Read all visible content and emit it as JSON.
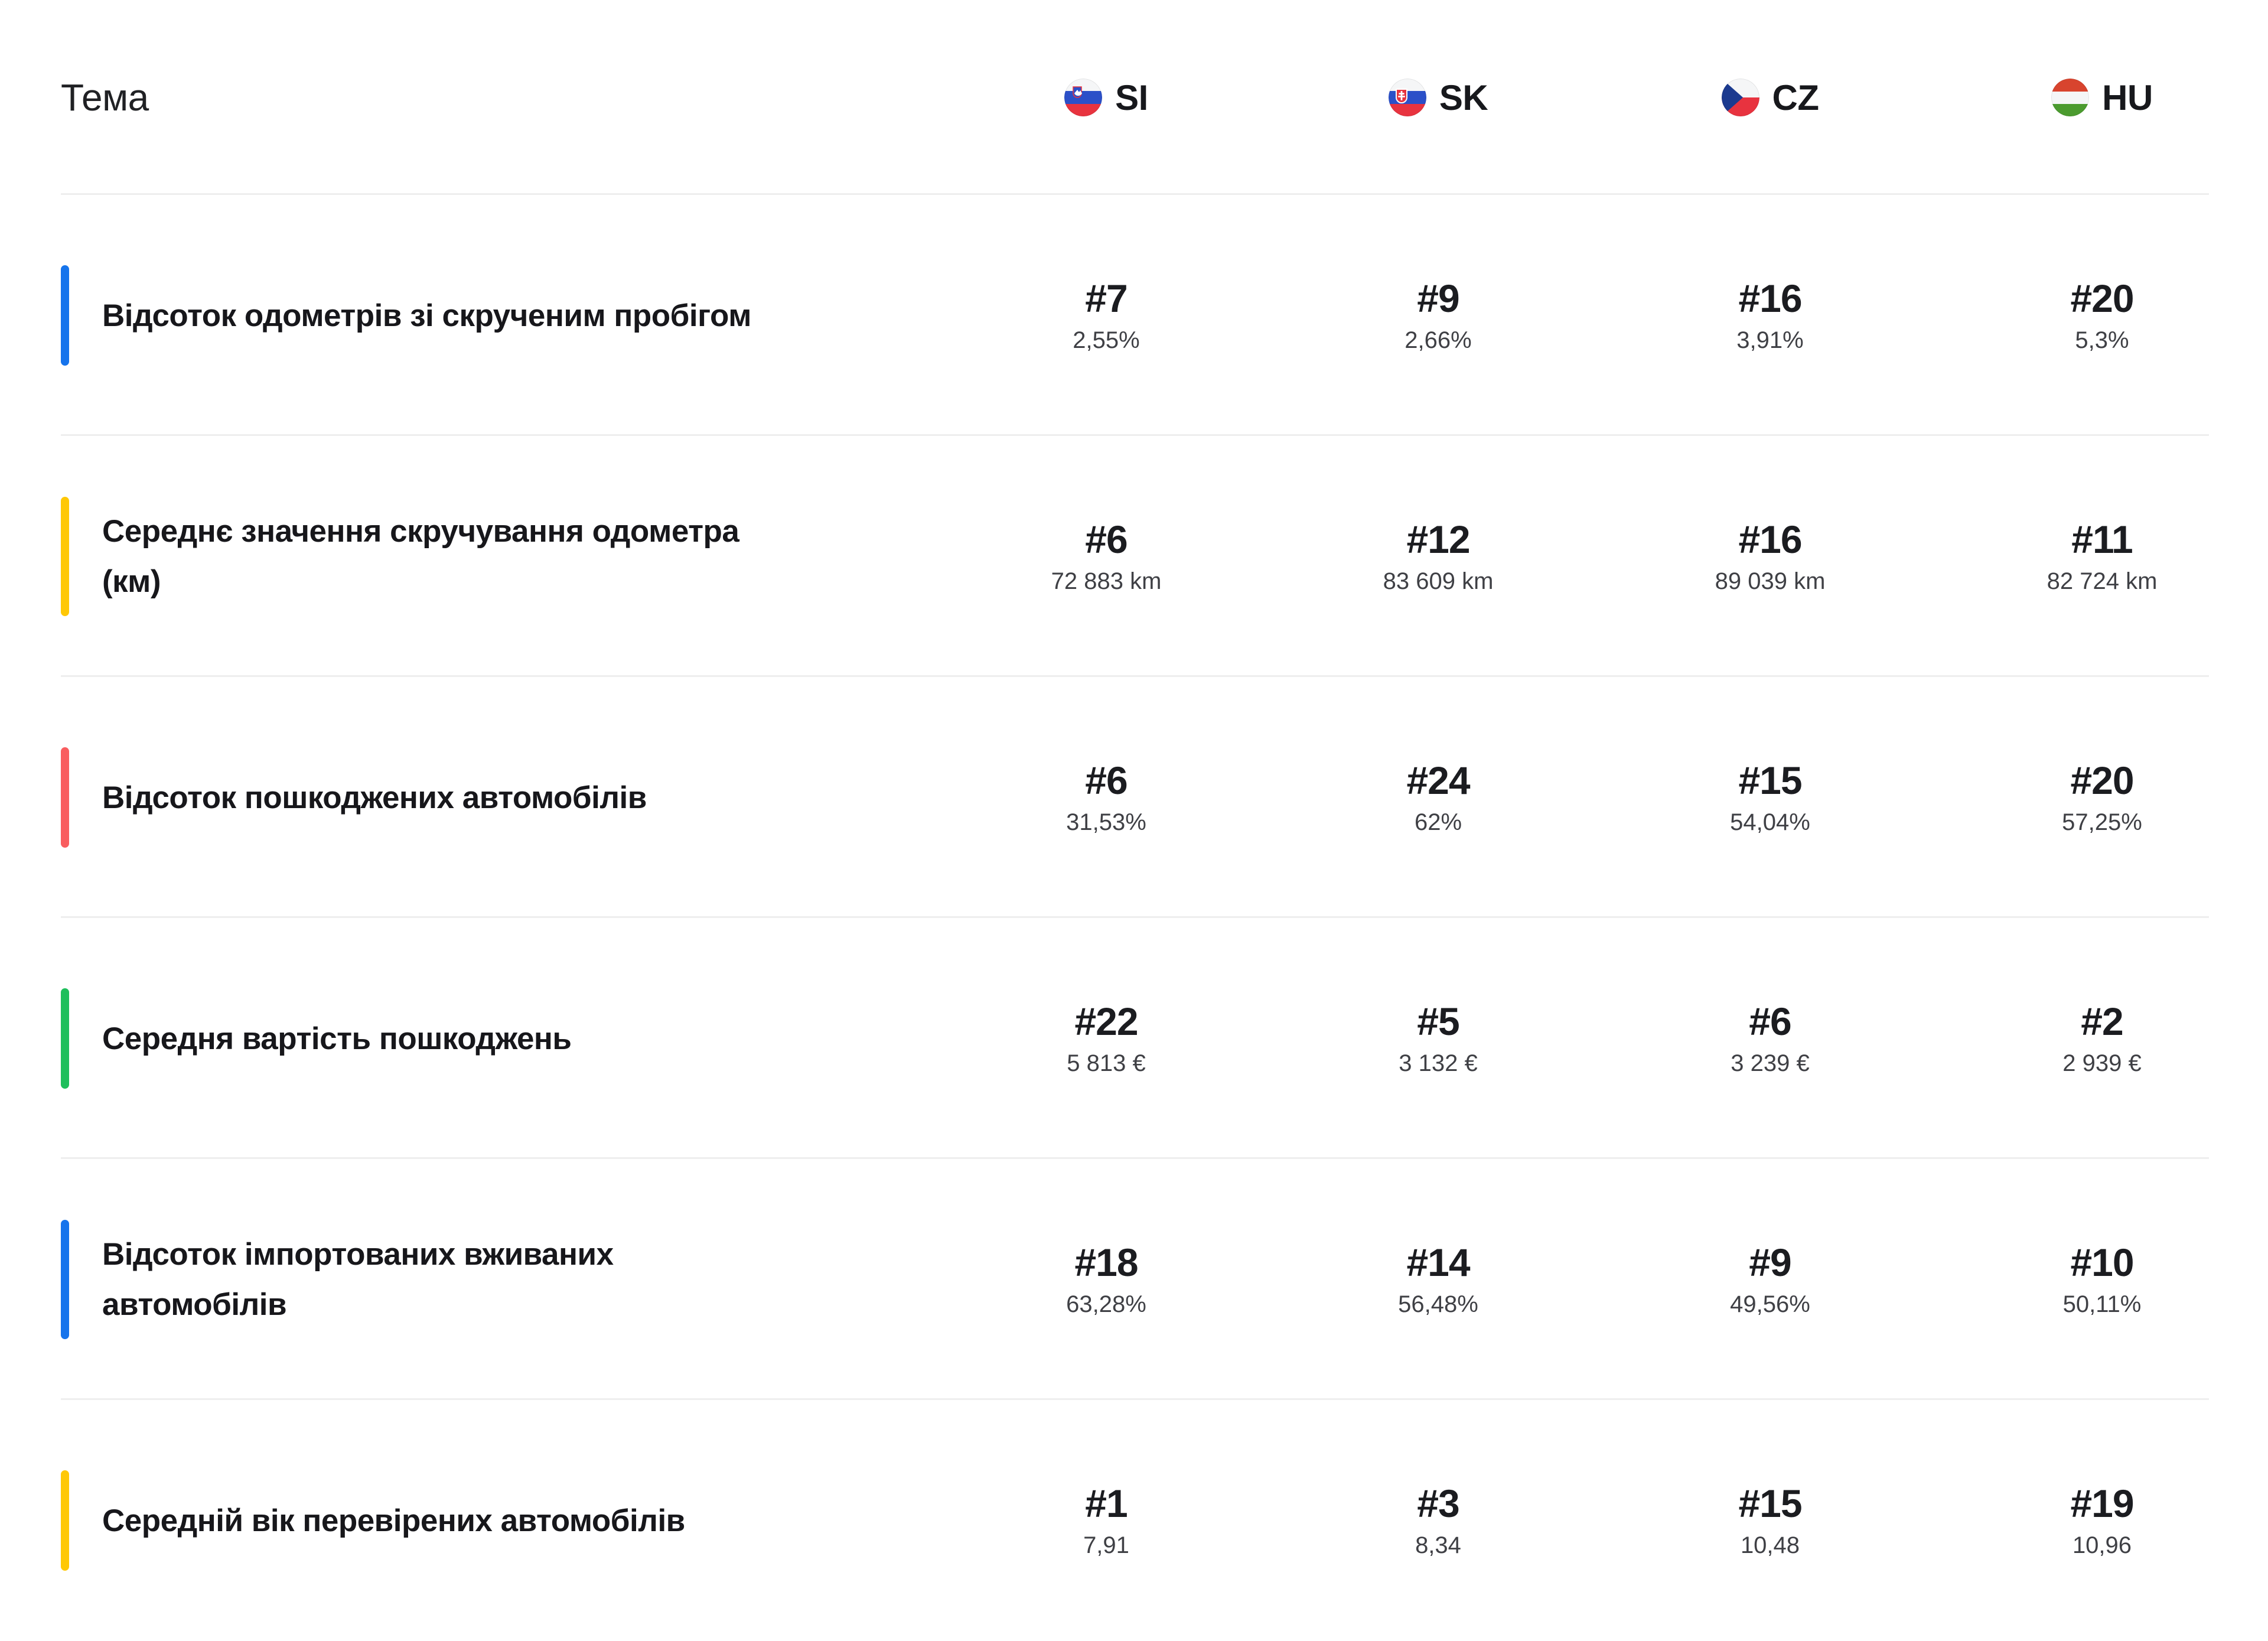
{
  "header": {
    "topic_label": "Тема",
    "columns": [
      {
        "code": "SI",
        "flag": "si",
        "flag_name": "slovenia-flag-icon"
      },
      {
        "code": "SK",
        "flag": "sk",
        "flag_name": "slovakia-flag-icon"
      },
      {
        "code": "CZ",
        "flag": "cz",
        "flag_name": "czechia-flag-icon"
      },
      {
        "code": "HU",
        "flag": "hu",
        "flag_name": "hungary-flag-icon"
      }
    ]
  },
  "rows": [
    {
      "accent_color": "#1674EC",
      "title_lines": [
        "Відсоток одометрів зі скрученим пробігом"
      ],
      "cells": [
        {
          "rank": "#7",
          "value": "2,55%"
        },
        {
          "rank": "#9",
          "value": "2,66%"
        },
        {
          "rank": "#16",
          "value": "3,91%"
        },
        {
          "rank": "#20",
          "value": "5,3%"
        }
      ]
    },
    {
      "accent_color": "#FFC805",
      "title_lines": [
        "Середнє значення скручування одометра",
        "(км)"
      ],
      "cells": [
        {
          "rank": "#6",
          "value": "72 883 km"
        },
        {
          "rank": "#12",
          "value": "83 609 km"
        },
        {
          "rank": "#16",
          "value": "89 039 km"
        },
        {
          "rank": "#11",
          "value": "82 724 km"
        }
      ]
    },
    {
      "accent_color": "#F95D5F",
      "title_lines": [
        "Відсоток пошкоджених автомобілів"
      ],
      "cells": [
        {
          "rank": "#6",
          "value": "31,53%"
        },
        {
          "rank": "#24",
          "value": "62%"
        },
        {
          "rank": "#15",
          "value": "54,04%"
        },
        {
          "rank": "#20",
          "value": "57,25%"
        }
      ]
    },
    {
      "accent_color": "#1FBF5C",
      "title_lines": [
        "Середня вартість пошкоджень"
      ],
      "cells": [
        {
          "rank": "#22",
          "value": "5 813 €"
        },
        {
          "rank": "#5",
          "value": "3 132 €"
        },
        {
          "rank": "#6",
          "value": "3 239 €"
        },
        {
          "rank": "#2",
          "value": "2 939 €"
        }
      ]
    },
    {
      "accent_color": "#1674EC",
      "title_lines": [
        "Відсоток імпортованих вживаних",
        "автомобілів"
      ],
      "cells": [
        {
          "rank": "#18",
          "value": "63,28%"
        },
        {
          "rank": "#14",
          "value": "56,48%"
        },
        {
          "rank": "#9",
          "value": "49,56%"
        },
        {
          "rank": "#10",
          "value": "50,11%"
        }
      ]
    },
    {
      "accent_color": "#FFC805",
      "title_lines": [
        "Середній вік перевірених автомобілів"
      ],
      "cells": [
        {
          "rank": "#1",
          "value": "7,91"
        },
        {
          "rank": "#3",
          "value": "8,34"
        },
        {
          "rank": "#15",
          "value": "10,48"
        },
        {
          "rank": "#19",
          "value": "10,96"
        }
      ]
    }
  ],
  "colors": {
    "background": "#FFFFFF",
    "divider": "#EEEEEE",
    "title_text": "#17171B",
    "rank_text": "#1B1C20",
    "value_text": "#3F4045",
    "header_text": "#202124",
    "accent_blue": "#1674EC",
    "accent_yellow": "#FFC805",
    "accent_red": "#F95D5F",
    "accent_green": "#1FBF5C"
  }
}
